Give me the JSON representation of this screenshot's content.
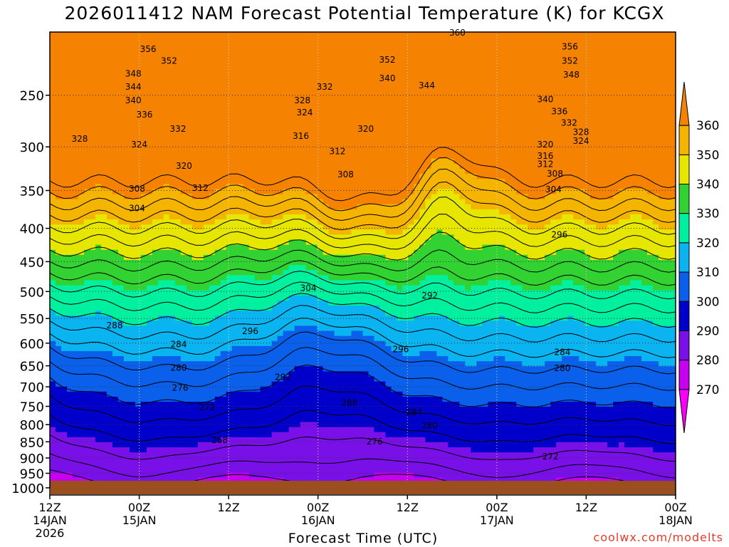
{
  "chart_data": {
    "type": "contour",
    "title": "2026011412 NAM Forecast Potential Temperature (K) for KCGX",
    "xlabel": "Forecast Time (UTC)",
    "credit": "coolwx.com/modelts",
    "x_ticks": [
      {
        "hour": 0,
        "l1": "12Z",
        "l2": "14JAN",
        "l3": "2026"
      },
      {
        "hour": 12,
        "l1": "00Z",
        "l2": "15JAN",
        "l3": ""
      },
      {
        "hour": 24,
        "l1": "12Z",
        "l2": "",
        "l3": ""
      },
      {
        "hour": 36,
        "l1": "00Z",
        "l2": "16JAN",
        "l3": ""
      },
      {
        "hour": 48,
        "l1": "12Z",
        "l2": "",
        "l3": ""
      },
      {
        "hour": 60,
        "l1": "00Z",
        "l2": "17JAN",
        "l3": ""
      },
      {
        "hour": 72,
        "l1": "12Z",
        "l2": "",
        "l3": ""
      },
      {
        "hour": 84,
        "l1": "00Z",
        "l2": "18JAN",
        "l3": ""
      }
    ],
    "y_ticks": [
      250,
      300,
      350,
      400,
      450,
      500,
      550,
      600,
      650,
      700,
      750,
      800,
      850,
      900,
      950,
      1000
    ],
    "x_range_hours": [
      0,
      84
    ],
    "pressure_range_mb": [
      200,
      1000
    ],
    "colorbar": {
      "levels": [
        270,
        280,
        290,
        300,
        310,
        320,
        330,
        340,
        350,
        360
      ],
      "colors": [
        "#fa00fa",
        "#c800f0",
        "#7a10e8",
        "#0000ca",
        "#0a60ea",
        "#0ab4f0",
        "#00f0a0",
        "#32d232",
        "#e6e600",
        "#f5b400",
        "#f58200"
      ]
    },
    "contour_labels": [
      {
        "h": 13.2,
        "p": 212,
        "v": "356"
      },
      {
        "h": 16,
        "p": 221,
        "v": "352"
      },
      {
        "h": 11.2,
        "p": 231,
        "v": "348"
      },
      {
        "h": 11.2,
        "p": 242,
        "v": "344"
      },
      {
        "h": 11.2,
        "p": 254,
        "v": "340"
      },
      {
        "h": 12.7,
        "p": 267,
        "v": "336"
      },
      {
        "h": 17.2,
        "p": 281,
        "v": "332"
      },
      {
        "h": 4.0,
        "p": 291,
        "v": "328"
      },
      {
        "h": 12.0,
        "p": 297,
        "v": "324"
      },
      {
        "h": 18.0,
        "p": 320,
        "v": "320"
      },
      {
        "h": 20.2,
        "p": 346,
        "v": "312"
      },
      {
        "h": 11.7,
        "p": 347,
        "v": "308"
      },
      {
        "h": 11.7,
        "p": 372,
        "v": "304"
      },
      {
        "h": 54.7,
        "p": 200,
        "v": "360"
      },
      {
        "h": 45.3,
        "p": 220,
        "v": "352"
      },
      {
        "h": 45.3,
        "p": 235,
        "v": "340"
      },
      {
        "h": 50.6,
        "p": 241,
        "v": "344"
      },
      {
        "h": 36.9,
        "p": 242,
        "v": "332"
      },
      {
        "h": 33.9,
        "p": 254,
        "v": "328"
      },
      {
        "h": 34.2,
        "p": 265,
        "v": "324"
      },
      {
        "h": 42.4,
        "p": 281,
        "v": "320"
      },
      {
        "h": 33.7,
        "p": 288,
        "v": "316"
      },
      {
        "h": 38.6,
        "p": 304,
        "v": "312"
      },
      {
        "h": 39.7,
        "p": 330,
        "v": "308"
      },
      {
        "h": 69.8,
        "p": 210,
        "v": "356"
      },
      {
        "h": 69.8,
        "p": 221,
        "v": "352"
      },
      {
        "h": 70.0,
        "p": 232,
        "v": "348"
      },
      {
        "h": 66.5,
        "p": 253,
        "v": "340"
      },
      {
        "h": 68.4,
        "p": 264,
        "v": "336"
      },
      {
        "h": 69.7,
        "p": 275,
        "v": "332"
      },
      {
        "h": 71.3,
        "p": 284,
        "v": "328"
      },
      {
        "h": 71.3,
        "p": 293,
        "v": "324"
      },
      {
        "h": 66.5,
        "p": 297,
        "v": "320"
      },
      {
        "h": 66.5,
        "p": 309,
        "v": "316"
      },
      {
        "h": 66.5,
        "p": 318,
        "v": "312"
      },
      {
        "h": 67.8,
        "p": 329,
        "v": "308"
      },
      {
        "h": 67.6,
        "p": 348,
        "v": "304"
      },
      {
        "h": 68.4,
        "p": 408,
        "v": "296"
      },
      {
        "h": 34.7,
        "p": 493,
        "v": "304"
      },
      {
        "h": 51.0,
        "p": 506,
        "v": "292"
      },
      {
        "h": 8.7,
        "p": 562,
        "v": "288"
      },
      {
        "h": 17.3,
        "p": 601,
        "v": "284"
      },
      {
        "h": 26.9,
        "p": 574,
        "v": "296"
      },
      {
        "h": 47.1,
        "p": 612,
        "v": "296"
      },
      {
        "h": 17.3,
        "p": 653,
        "v": "280"
      },
      {
        "h": 31.3,
        "p": 675,
        "v": "292"
      },
      {
        "h": 17.5,
        "p": 701,
        "v": "276"
      },
      {
        "h": 21.1,
        "p": 751,
        "v": "272"
      },
      {
        "h": 40.2,
        "p": 739,
        "v": "288"
      },
      {
        "h": 48.9,
        "p": 764,
        "v": "284"
      },
      {
        "h": 68.8,
        "p": 618,
        "v": "284"
      },
      {
        "h": 68.8,
        "p": 654,
        "v": "280"
      },
      {
        "h": 51.0,
        "p": 801,
        "v": "280"
      },
      {
        "h": 43.6,
        "p": 847,
        "v": "276"
      },
      {
        "h": 22.8,
        "p": 843,
        "v": "268"
      },
      {
        "h": 67.2,
        "p": 893,
        "v": "272"
      }
    ]
  }
}
